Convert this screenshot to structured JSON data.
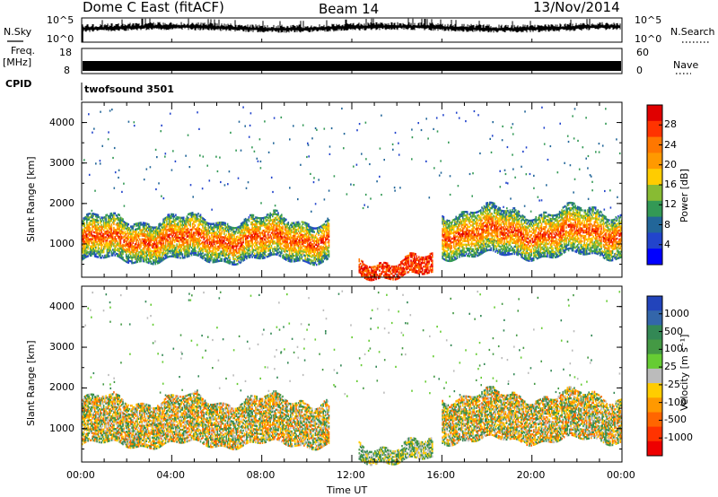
{
  "header": {
    "radar": "Dome C East (fitACF)",
    "beam": "Beam 14",
    "date": "13/Nov/2014"
  },
  "nsky": {
    "label": "N.Sky",
    "left_ticks": [
      "10^5",
      "10^0"
    ],
    "right_ticks": [
      "10^5",
      "10^0"
    ],
    "right_label": "N.Search"
  },
  "freq": {
    "label_line1": "Freq.",
    "label_line2": "[MHz]",
    "left_ticks": [
      "18",
      "8"
    ],
    "right_ticks": [
      "60",
      "0"
    ],
    "right_label": "Nave"
  },
  "cpid": {
    "label": "CPID",
    "value": "twofsound 3501"
  },
  "time_axis": {
    "label": "Time UT",
    "ticks": [
      "00:00",
      "04:00",
      "08:00",
      "12:00",
      "16:00",
      "20:00",
      "00:00"
    ]
  },
  "range_axis": {
    "label": "Slant Range [km]",
    "ticks": [
      "4000",
      "3000",
      "2000",
      "1000"
    ]
  },
  "colorbars": {
    "power": {
      "label": "Power [dB]",
      "ticks": [
        "28",
        "24",
        "20",
        "16",
        "12",
        "8",
        "4"
      ],
      "colors": [
        "#e00000",
        "#ff3300",
        "#ff7700",
        "#ff9900",
        "#ffcc00",
        "#88bb33",
        "#339955",
        "#226699",
        "#2244cc",
        "#0000ff"
      ]
    },
    "velocity": {
      "label": "Velocity [m s⁻¹]",
      "ticks": [
        "1000",
        "500",
        "100",
        "25",
        "-25",
        "-100",
        "-500",
        "-1000"
      ],
      "colors": [
        "#2244bb",
        "#3366aa",
        "#338855",
        "#449944",
        "#66cc33",
        "#bbbbbb",
        "#ffcc00",
        "#ff9900",
        "#ff6600",
        "#ff3300",
        "#ee0000"
      ]
    }
  },
  "chart_data": [
    {
      "type": "heatmap",
      "title": "Power",
      "xlabel": "Time UT",
      "ylabel": "Slant Range [km]",
      "xlim": [
        0,
        24
      ],
      "ylim": [
        180,
        4500
      ],
      "colorbar_label": "Power [dB]",
      "colorbar_range": [
        0,
        32
      ],
      "echo_bands": [
        {
          "t_start": 0.0,
          "t_end": 11.0,
          "range_low": 600,
          "range_high": 1600,
          "value": 22
        },
        {
          "t_start": 12.3,
          "t_end": 15.6,
          "range_low": 200,
          "range_high": 600,
          "value": 26
        },
        {
          "t_start": 16.0,
          "t_end": 24.0,
          "range_low": 700,
          "range_high": 1800,
          "value": 18
        }
      ]
    },
    {
      "type": "heatmap",
      "title": "Velocity",
      "xlabel": "Time UT",
      "ylabel": "Slant Range [km]",
      "xlim": [
        0,
        24
      ],
      "ylim": [
        180,
        4500
      ],
      "colorbar_label": "Velocity [m s⁻¹]",
      "colorbar_range": [
        -1000,
        1000
      ],
      "echo_bands": [
        {
          "t_start": 0.0,
          "t_end": 11.0,
          "range_low": 600,
          "range_high": 1700,
          "value": -200
        },
        {
          "t_start": 12.3,
          "t_end": 15.6,
          "range_low": 200,
          "range_high": 600,
          "value": 100
        },
        {
          "t_start": 16.0,
          "t_end": 24.0,
          "range_low": 700,
          "range_high": 1800,
          "value": -150
        }
      ]
    }
  ]
}
